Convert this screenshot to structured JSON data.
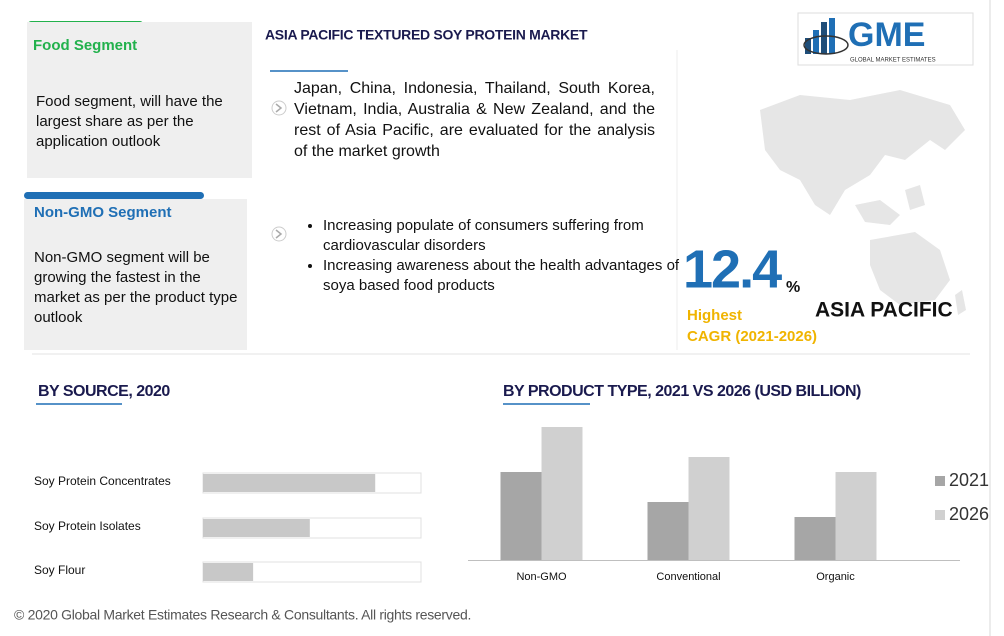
{
  "title": "ASIA PACIFIC TEXTURED SOY PROTEIN MARKET",
  "logo": {
    "text": "GME",
    "subtitle": "GLOBAL MARKET ESTIMATES"
  },
  "segments": [
    {
      "title": "Food Segment",
      "text": "Food segment, will have the largest share as per the application outlook",
      "color": "#22b14c"
    },
    {
      "title": "Non-GMO Segment",
      "text": "Non-GMO segment will be growing the fastest in the market as per the product type outlook",
      "color": "#1f6fb5"
    }
  ],
  "countries_text": "Japan, China, Indonesia, Thailand, South Korea, Vietnam, India, Australia & New Zealand, and the rest of Asia Pacific, are evaluated for the analysis of the market growth",
  "bullets": [
    "Increasing populate of consumers suffering from cardiovascular disorders",
    "Increasing awareness about the health advantages of soya based food products"
  ],
  "cagr": {
    "value": 12.4,
    "unit": "%",
    "label": "Highest",
    "period": "CAGR (2021-2026)",
    "region": "ASIA PACIFIC"
  },
  "footer": "© 2020 Global Market Estimates Research & Consultants. All rights reserved.",
  "chart_data": [
    {
      "type": "hbar",
      "title": "BY SOURCE, 2020",
      "categories": [
        "Soy Protein Concentrates",
        "Soy Protein Isolates",
        "Soy Flour"
      ],
      "values": [
        79,
        49,
        23
      ],
      "xlim": [
        0,
        100
      ],
      "color": "#c8c8c8"
    },
    {
      "type": "bar",
      "title": "BY PRODUCT TYPE, 2021 VS 2026 (USD BILLION)",
      "categories": [
        "Non-GMO",
        "Conventional",
        "Organic"
      ],
      "series": [
        {
          "name": "2021",
          "color": "#a6a6a6",
          "values": [
            88,
            58,
            43
          ]
        },
        {
          "name": "2026",
          "color": "#d0d0d0",
          "values": [
            133,
            103,
            88
          ]
        }
      ],
      "ylim": [
        0,
        140
      ],
      "legend": "right"
    }
  ]
}
